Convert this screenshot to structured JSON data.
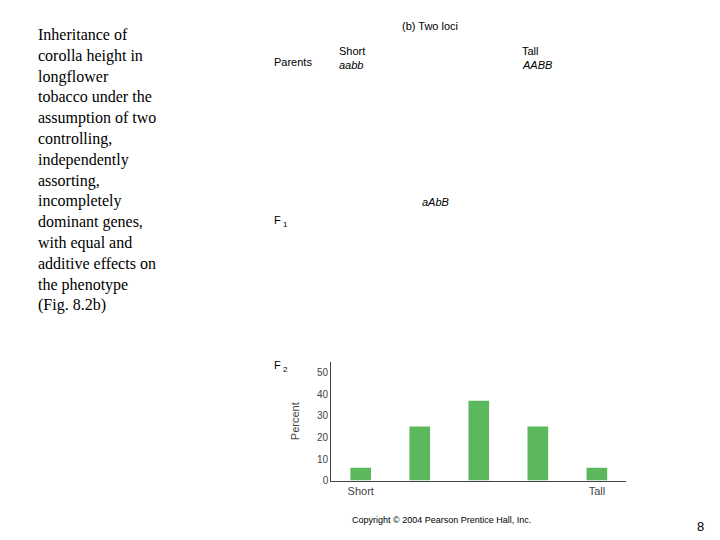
{
  "chart_data": {
    "type": "bar",
    "title": "Inheritance of\ncorolla height in\nlongflower\ntobacco under the\nassumption of two\ncontrolling,\nindependently\nassorting,\nincompletely\ndominant genes,\nwith equal and\nadditive effects on\nthe phenotype\n(Fig. 8.2b)",
    "subtitle": "(b) Two loci",
    "categories": [
      "Short",
      null,
      null,
      null,
      "Tall"
    ],
    "values": [
      6,
      25,
      37,
      25,
      6
    ],
    "color": "#5cb85c",
    "ylabel": "Percent",
    "ylim": [
      0,
      55
    ],
    "yticks": [
      0,
      10,
      20,
      30,
      40,
      50
    ],
    "grid": false,
    "annotations": [
      "Parents",
      "Short",
      "aabb",
      "Tall",
      "AABB",
      "F",
      "1",
      "aAbB",
      "F",
      "2",
      "Copyright © 2004 Pearson Prentice Hall, Inc.",
      "8"
    ]
  }
}
